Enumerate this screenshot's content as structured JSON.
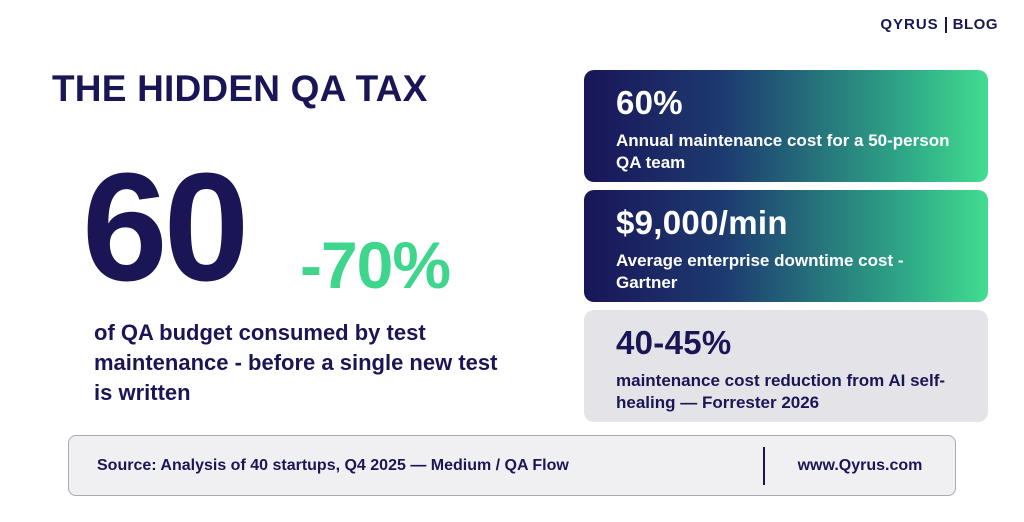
{
  "brand": {
    "logo": "QYRUS",
    "section": "BLOG"
  },
  "headline": "THE HIDDEN QA TAX",
  "hero": {
    "number": "60",
    "suffix": "-70%",
    "caption": "of QA budget consumed by test maintenance - before a single new test is written"
  },
  "stats": [
    {
      "value": "60%",
      "description": "Annual maintenance cost for a 50-person QA team"
    },
    {
      "value": "$9,000/min",
      "description": "Average enterprise downtime cost - Gartner"
    },
    {
      "value": "40-45%",
      "description": "maintenance cost reduction from AI self-healing — Forrester 2026"
    }
  ],
  "footer": {
    "source": "Source: Analysis of 40 startups, Q4 2025 — Medium / QA Flow",
    "website": "www.Qyrus.com"
  },
  "colors": {
    "navy": "#1a1656",
    "green": "#3dd68c",
    "card_gray": "#e4e4e8"
  }
}
